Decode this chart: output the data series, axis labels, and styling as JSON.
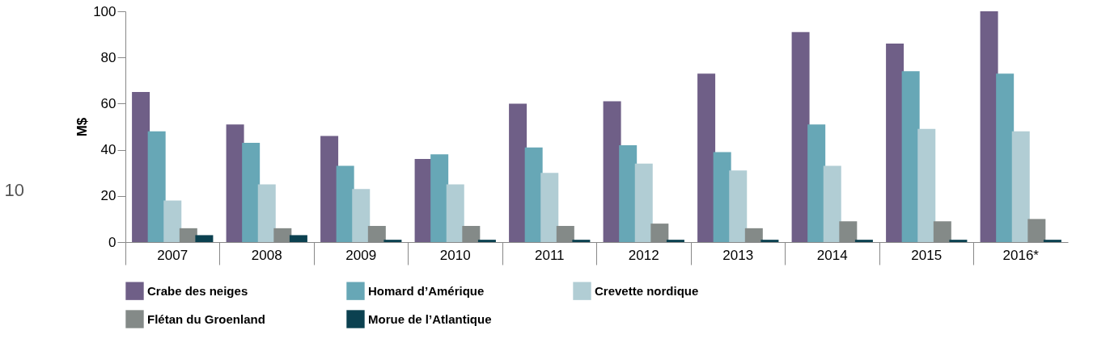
{
  "chart_data": {
    "type": "bar",
    "ylabel": "M$",
    "categories": [
      "2007",
      "2008",
      "2009",
      "2010",
      "2011",
      "2012",
      "2013",
      "2014",
      "2015",
      "2016*"
    ],
    "series": [
      {
        "name": "Crabe des neiges",
        "color": "#6f5f87",
        "values": [
          65,
          51,
          46,
          36,
          60,
          61,
          73,
          91,
          86,
          100
        ]
      },
      {
        "name": "Homard d’Amérique",
        "color": "#67a7b6",
        "values": [
          48,
          43,
          33,
          38,
          41,
          42,
          39,
          51,
          74,
          73
        ]
      },
      {
        "name": "Crevette nordique",
        "color": "#b1cdd4",
        "values": [
          18,
          25,
          23,
          25,
          30,
          34,
          31,
          33,
          49,
          48
        ]
      },
      {
        "name": "Flétan du Groenland",
        "color": "#848a88",
        "values": [
          6,
          6,
          7,
          7,
          7,
          8,
          6,
          9,
          9,
          10
        ]
      },
      {
        "name": "Morue de l’Atlantique",
        "color": "#0b4150",
        "values": [
          3,
          3,
          1,
          1,
          1,
          1,
          1,
          1,
          1,
          1
        ]
      }
    ],
    "ylim": [
      0,
      100
    ],
    "yticks": [
      0,
      20,
      40,
      60,
      80,
      100
    ],
    "grid": false,
    "legend": "bottom",
    "annotations": [
      "10"
    ]
  }
}
